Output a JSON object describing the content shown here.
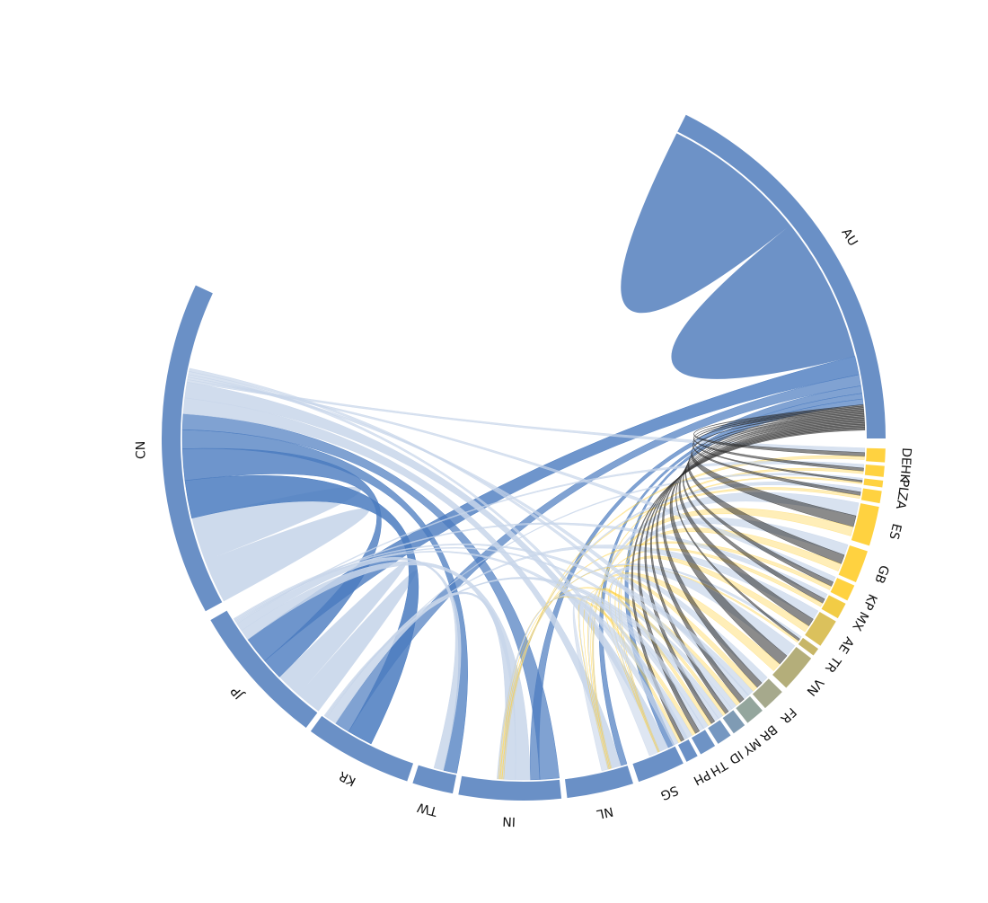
{
  "chart_data": {
    "type": "chord",
    "colors": {
      "blue": "#4a7bbf",
      "yellow": "#ffcf33"
    },
    "nodes": [
      {
        "name": "AU",
        "color": "#6a90c6",
        "weight": 58
      },
      {
        "name": "DE",
        "color": "#ffd240",
        "weight": 2.0
      },
      {
        "name": "HK",
        "color": "#ffd240",
        "weight": 1.6
      },
      {
        "name": "PL",
        "color": "#ffd240",
        "weight": 1.0
      },
      {
        "name": "ZA",
        "color": "#ffd240",
        "weight": 1.8
      },
      {
        "name": "ES",
        "color": "#ffd240",
        "weight": 5.8
      },
      {
        "name": "GB",
        "color": "#ffd240",
        "weight": 4.8
      },
      {
        "name": "KP",
        "color": "#ffd240",
        "weight": 2.4
      },
      {
        "name": "MX",
        "color": "#f2cc45",
        "weight": 2.4
      },
      {
        "name": "AE",
        "color": "#dbc15c",
        "weight": 4.2
      },
      {
        "name": "TR",
        "color": "#c7b667",
        "weight": 1.2
      },
      {
        "name": "VN",
        "color": "#b4ae7a",
        "weight": 5.6
      },
      {
        "name": "FR",
        "color": "#a6a98c",
        "weight": 3.4
      },
      {
        "name": "BR",
        "color": "#94a69d",
        "weight": 2.8
      },
      {
        "name": "MY",
        "color": "#7f9bb4",
        "weight": 2.0
      },
      {
        "name": "ID",
        "color": "#7597c1",
        "weight": 2.2
      },
      {
        "name": "TH",
        "color": "#6e93c5",
        "weight": 2.4
      },
      {
        "name": "PH",
        "color": "#6a90c6",
        "weight": 1.8
      },
      {
        "name": "SG",
        "color": "#6a90c6",
        "weight": 7.0
      },
      {
        "name": "NL",
        "color": "#6a90c6",
        "weight": 9.8
      },
      {
        "name": "IN",
        "color": "#6a90c6",
        "weight": 15.0
      },
      {
        "name": "TW",
        "color": "#6a90c6",
        "weight": 6.0
      },
      {
        "name": "KR",
        "color": "#6a90c6",
        "weight": 15.8
      },
      {
        "name": "JP",
        "color": "#6a90c6",
        "weight": 21.0
      },
      {
        "name": "CN",
        "color": "#6a90c6",
        "weight": 49.0
      }
    ]
  }
}
